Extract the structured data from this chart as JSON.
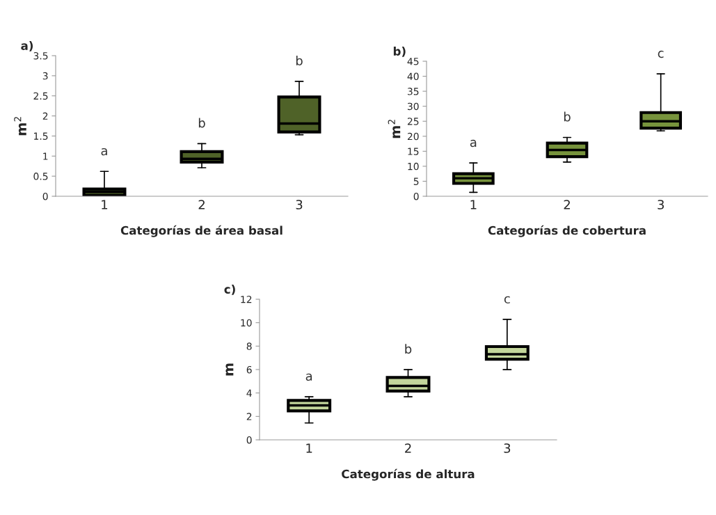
{
  "chart_data": [
    {
      "type": "box",
      "title": "a)",
      "xlabel": "Categorías de área basal",
      "ylabel": "m$^{2}$",
      "categories": [
        "1",
        "2",
        "3"
      ],
      "ylim": [
        0,
        3.5
      ],
      "yticks": [
        0,
        0.5,
        1,
        1.5,
        2,
        2.5,
        3,
        3.5
      ],
      "grid": false,
      "series": [
        {
          "color": "#4f6228",
          "boxes": [
            {
              "low": 0.02,
              "q1": 0.02,
              "median": 0.11,
              "q3": 0.18,
              "high": 0.62
            },
            {
              "low": 0.71,
              "q1": 0.85,
              "median": 0.93,
              "q3": 1.11,
              "high": 1.31
            },
            {
              "low": 1.53,
              "q1": 1.6,
              "median": 1.81,
              "q3": 2.47,
              "high": 2.86
            }
          ]
        }
      ],
      "annotations": [
        "a",
        "b",
        "b"
      ]
    },
    {
      "type": "box",
      "title": "b)",
      "xlabel": "Categorías de cobertura",
      "ylabel": "m$^{2}$",
      "categories": [
        "1",
        "2",
        "3"
      ],
      "ylim": [
        0,
        45
      ],
      "yticks": [
        0,
        5,
        10,
        15,
        20,
        25,
        30,
        35,
        40,
        45
      ],
      "grid": false,
      "series": [
        {
          "color": "#77933c",
          "boxes": [
            {
              "low": 1.3,
              "q1": 4.3,
              "median": 6.0,
              "q3": 7.5,
              "high": 11.1
            },
            {
              "low": 11.4,
              "q1": 13.2,
              "median": 15.4,
              "q3": 17.7,
              "high": 19.6
            },
            {
              "low": 21.8,
              "q1": 22.7,
              "median": 25.0,
              "q3": 27.9,
              "high": 40.8
            }
          ]
        }
      ],
      "annotations": [
        "a",
        "b",
        "c"
      ]
    },
    {
      "type": "box",
      "title": "c)",
      "xlabel": "Categorías de altura",
      "ylabel": "m",
      "categories": [
        "1",
        "2",
        "3"
      ],
      "ylim": [
        0,
        12
      ],
      "yticks": [
        0,
        2,
        4,
        6,
        8,
        10,
        12
      ],
      "grid": false,
      "series": [
        {
          "color": "#c3d69b",
          "boxes": [
            {
              "low": 1.44,
              "q1": 2.47,
              "median": 2.94,
              "q3": 3.36,
              "high": 3.68
            },
            {
              "low": 3.68,
              "q1": 4.17,
              "median": 4.6,
              "q3": 5.32,
              "high": 5.99
            },
            {
              "low": 5.99,
              "q1": 6.88,
              "median": 7.31,
              "q3": 7.96,
              "high": 10.28
            }
          ]
        }
      ],
      "annotations": [
        "a",
        "b",
        "c"
      ]
    }
  ]
}
